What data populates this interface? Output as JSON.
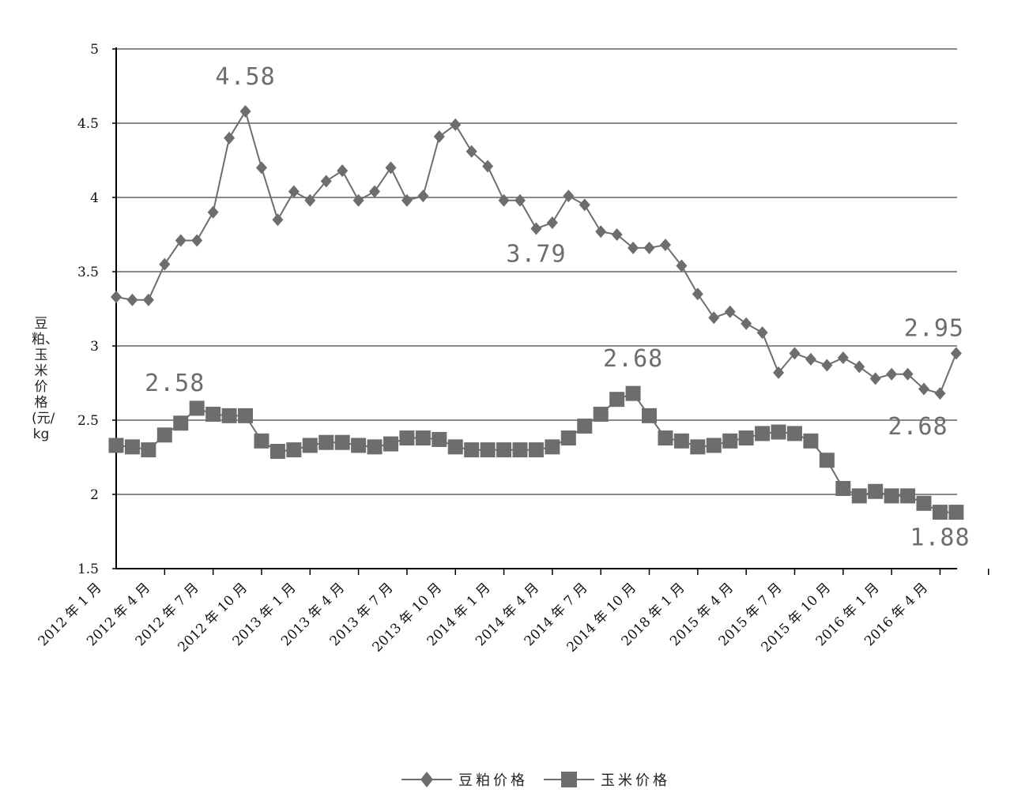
{
  "chart_data": {
    "type": "line",
    "ylabel": "豆粕、玉米价格(元/kg",
    "ylim": [
      1.5,
      5
    ],
    "yticks": [
      1.5,
      2,
      2.5,
      3,
      3.5,
      4,
      4.5,
      5
    ],
    "ytick_labels": [
      "1.5",
      "2",
      "2.5",
      "3",
      "3.5",
      "4",
      "4.5",
      "5"
    ],
    "xtick_labels": [
      "2012 年 1 月",
      "2012 年 4 月",
      "2012 年 7 月",
      "2012 年 10 月",
      "2013 年 1 月",
      "2013 年 4 月",
      "2013 年 7 月",
      "2013 年 10 月",
      "2014 年 1 月",
      "2014 年 4 月",
      "2014 年 7 月",
      "2014 年 10 月",
      "2018 年 1 月",
      "2015 年 4 月",
      "2015 年 7 月",
      "2015 年 10 月",
      "2016 年 1 月",
      "2016 年 4 月"
    ],
    "grid": true,
    "legend_position": "bottom",
    "series": [
      {
        "name": "豆粕价格",
        "marker": "diamond",
        "color": "#6d6d6d",
        "values": [
          3.33,
          3.31,
          3.31,
          3.55,
          3.71,
          3.71,
          3.9,
          4.4,
          4.58,
          4.2,
          3.85,
          4.04,
          3.98,
          4.11,
          4.18,
          3.98,
          4.04,
          4.2,
          3.98,
          4.01,
          4.41,
          4.49,
          4.31,
          4.21,
          3.98,
          3.98,
          3.79,
          3.83,
          4.01,
          3.95,
          3.77,
          3.75,
          3.66,
          3.66,
          3.68,
          3.54,
          3.35,
          3.19,
          3.23,
          3.15,
          3.09,
          2.82,
          2.95,
          2.91,
          2.87,
          2.92,
          2.86,
          2.78,
          2.81,
          2.81,
          2.71,
          2.68,
          2.95
        ]
      },
      {
        "name": "玉米价格",
        "marker": "square",
        "color": "#6d6d6d",
        "values": [
          2.33,
          2.32,
          2.3,
          2.4,
          2.48,
          2.58,
          2.54,
          2.53,
          2.53,
          2.36,
          2.29,
          2.3,
          2.33,
          2.35,
          2.35,
          2.33,
          2.32,
          2.34,
          2.38,
          2.38,
          2.37,
          2.32,
          2.3,
          2.3,
          2.3,
          2.3,
          2.3,
          2.32,
          2.38,
          2.46,
          2.54,
          2.64,
          2.68,
          2.53,
          2.38,
          2.36,
          2.32,
          2.33,
          2.36,
          2.38,
          2.41,
          2.42,
          2.41,
          2.36,
          2.23,
          2.04,
          1.99,
          2.02,
          1.99,
          1.99,
          1.94,
          1.88,
          1.88
        ]
      }
    ],
    "annotations": [
      {
        "series": 0,
        "index": 8,
        "text": "4.58",
        "position": "above"
      },
      {
        "series": 0,
        "index": 26,
        "text": "3.79",
        "position": "below"
      },
      {
        "series": 0,
        "index": 52,
        "text": "2.95",
        "position": "above-left"
      },
      {
        "series": 0,
        "index": 51,
        "text": "2.68",
        "position": "below-left"
      },
      {
        "series": 1,
        "index": 5,
        "text": "2.58",
        "position": "above-left"
      },
      {
        "series": 1,
        "index": 32,
        "text": "2.68",
        "position": "above"
      },
      {
        "series": 1,
        "index": 51,
        "text": "1.88",
        "position": "below"
      }
    ]
  },
  "legend": {
    "soy_label": "豆粕价格",
    "corn_label": "玉米价格"
  }
}
